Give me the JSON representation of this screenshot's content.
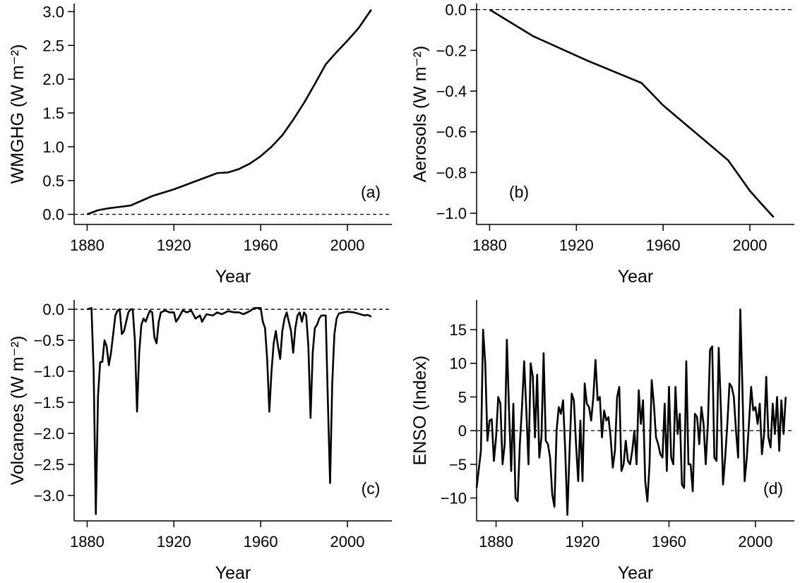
{
  "chart_data": [
    {
      "type": "line",
      "ylabel": "WMGHG (W m⁻²)",
      "xlabel": "Year",
      "annotation": "(a)",
      "annotation_position": "bottom-right",
      "color": "#000000",
      "hline": 0,
      "xlim": [
        1874,
        2020.5
      ],
      "ylim": [
        -0.15,
        3.12
      ],
      "xticks": [
        1880,
        1920,
        1960,
        2000
      ],
      "yticks": [
        {
          "value": 0,
          "label": "0.0"
        },
        0.5,
        {
          "value": 1,
          "label": "1.0"
        },
        1.5,
        {
          "value": 2,
          "label": "2.0"
        },
        2.5,
        {
          "value": 3,
          "label": "3.0"
        }
      ],
      "x": [
        1880,
        1885,
        1890,
        1895,
        1900,
        1905,
        1910,
        1915,
        1920,
        1925,
        1930,
        1935,
        1940,
        1945,
        1950,
        1955,
        1960,
        1965,
        1970,
        1975,
        1980,
        1985,
        1990,
        1995,
        2000,
        2005,
        2011
      ],
      "values": [
        0.0,
        0.06,
        0.09,
        0.11,
        0.13,
        0.2,
        0.27,
        0.32,
        0.37,
        0.43,
        0.49,
        0.55,
        0.61,
        0.62,
        0.67,
        0.75,
        0.86,
        1.0,
        1.17,
        1.4,
        1.65,
        1.93,
        2.22,
        2.4,
        2.57,
        2.75,
        3.03
      ]
    },
    {
      "type": "line",
      "ylabel": "Aerosols (W m⁻²)",
      "xlabel": "Year",
      "annotation": "(b)",
      "annotation_position": "bottom-left",
      "color": "#000000",
      "hline": 0,
      "xlim": [
        1874,
        2020.5
      ],
      "ylim": [
        -1.055,
        0.03
      ],
      "xticks": [
        1880,
        1920,
        1960,
        2000
      ],
      "yticks": [
        {
          "value": 0,
          "label": "0.0"
        },
        {
          "value": -0.2,
          "label": "−0.2"
        },
        {
          "value": -0.4,
          "label": "−0.4"
        },
        {
          "value": -0.6,
          "label": "−0.6"
        },
        {
          "value": -0.8,
          "label": "−0.8"
        },
        {
          "value": -1,
          "label": "−1.0"
        }
      ],
      "x": [
        1880,
        1900,
        1925,
        1950,
        1960,
        1970,
        1980,
        1990,
        2000,
        2005,
        2011
      ],
      "values": [
        0,
        -0.13,
        -0.25,
        -0.36,
        -0.47,
        -0.56,
        -0.65,
        -0.74,
        -0.89,
        -0.95,
        -1.02
      ]
    },
    {
      "type": "line",
      "ylabel": "Volcanoes (W m⁻²)",
      "xlabel": "Year",
      "annotation": "(c)",
      "annotation_position": "bottom-right",
      "color": "#000000",
      "hline": 0,
      "xlim": [
        1874,
        2020.5
      ],
      "ylim": [
        -3.41,
        0.15
      ],
      "xticks": [
        1880,
        1920,
        1960,
        2000
      ],
      "yticks": [
        {
          "value": 0,
          "label": "0.0"
        },
        {
          "value": -0.5,
          "label": "−0.5"
        },
        {
          "value": -1,
          "label": "−1.0"
        },
        {
          "value": -1.5,
          "label": "−1.5"
        },
        {
          "value": -2,
          "label": "−2.0"
        },
        {
          "value": -2.5,
          "label": "−2.5"
        },
        {
          "value": -3,
          "label": "−3.0"
        }
      ],
      "x": [
        1880,
        1882,
        1883,
        1884,
        1885,
        1886,
        1887,
        1888,
        1889,
        1890,
        1891,
        1892,
        1893,
        1894,
        1895,
        1896,
        1897,
        1898,
        1899,
        1900,
        1901,
        1902,
        1903,
        1904,
        1905,
        1906,
        1907,
        1908,
        1909,
        1910,
        1911,
        1912,
        1913,
        1914,
        1916,
        1918,
        1920,
        1921,
        1922,
        1924,
        1926,
        1928,
        1930,
        1932,
        1933,
        1935,
        1938,
        1940,
        1942,
        1945,
        1948,
        1950,
        1952,
        1955,
        1957,
        1960,
        1961,
        1962,
        1963,
        1964,
        1965,
        1966,
        1967,
        1968,
        1969,
        1970,
        1971,
        1972,
        1973,
        1974,
        1975,
        1976,
        1977,
        1978,
        1979,
        1980,
        1981,
        1982,
        1983,
        1984,
        1985,
        1986,
        1987,
        1988,
        1989,
        1990,
        1991,
        1992,
        1993,
        1994,
        1995,
        1996,
        1998,
        2000,
        2003,
        2006,
        2008,
        2009,
        2010,
        2011
      ],
      "values": [
        0,
        0.02,
        -1.0,
        -3.3,
        -1.4,
        -0.85,
        -0.85,
        -0.5,
        -0.6,
        -0.9,
        -0.7,
        -0.4,
        -0.1,
        -0.02,
        0,
        -0.4,
        -0.35,
        -0.2,
        -0.05,
        0,
        0,
        -0.5,
        -1.65,
        -0.7,
        -0.25,
        -0.15,
        -0.2,
        -0.1,
        -0.02,
        -0.05,
        -0.45,
        -0.55,
        -0.2,
        -0.05,
        -0.02,
        -0.05,
        -0.05,
        -0.2,
        -0.15,
        -0.02,
        -0.05,
        -0.02,
        -0.15,
        -0.1,
        -0.2,
        -0.08,
        -0.1,
        -0.05,
        -0.08,
        -0.03,
        -0.05,
        -0.05,
        -0.08,
        -0.03,
        0.02,
        0.02,
        -0.2,
        -0.3,
        -0.8,
        -1.65,
        -1.0,
        -0.55,
        -0.35,
        -0.6,
        -0.8,
        -0.35,
        -0.15,
        -0.05,
        -0.2,
        -0.35,
        -0.7,
        -0.3,
        -0.1,
        -0.05,
        -0.2,
        -0.05,
        -0.1,
        -0.6,
        -1.75,
        -0.7,
        -0.3,
        -0.25,
        -0.15,
        -0.1,
        -0.1,
        -0.1,
        -1.5,
        -2.8,
        -1.2,
        -0.4,
        -0.15,
        -0.07,
        -0.05,
        -0.04,
        -0.05,
        -0.08,
        -0.1,
        -0.09,
        -0.1,
        -0.12
      ]
    },
    {
      "type": "line",
      "ylabel": "ENSO (Index)",
      "xlabel": "Year",
      "annotation": "(d)",
      "annotation_position": "bottom-right",
      "color": "#000000",
      "hline": 0,
      "xlim": [
        1871,
        2018
      ],
      "ylim": [
        -13.4,
        19.4
      ],
      "xticks": [
        1880,
        1920,
        1960,
        2000
      ],
      "yticks": [
        {
          "value": -10,
          "label": "−10"
        },
        {
          "value": -5,
          "label": "−5"
        },
        0,
        5,
        10,
        15
      ],
      "x": [
        1871,
        1873,
        1874,
        1875,
        1876,
        1877,
        1878,
        1879,
        1880,
        1881,
        1882,
        1883,
        1884,
        1885,
        1886,
        1887,
        1888,
        1889,
        1890,
        1891,
        1892,
        1893,
        1894,
        1895,
        1896,
        1897,
        1898,
        1899,
        1900,
        1901,
        1902,
        1903,
        1904,
        1905,
        1906,
        1907,
        1908,
        1909,
        1910,
        1911,
        1912,
        1913,
        1914,
        1915,
        1916,
        1917,
        1918,
        1919,
        1920,
        1921,
        1922,
        1923,
        1924,
        1925,
        1926,
        1927,
        1928,
        1929,
        1930,
        1931,
        1932,
        1933,
        1934,
        1935,
        1936,
        1937,
        1938,
        1939,
        1940,
        1941,
        1942,
        1943,
        1944,
        1945,
        1946,
        1947,
        1948,
        1949,
        1950,
        1951,
        1952,
        1953,
        1954,
        1955,
        1956,
        1957,
        1958,
        1959,
        1960,
        1961,
        1962,
        1963,
        1964,
        1965,
        1966,
        1967,
        1968,
        1969,
        1970,
        1971,
        1972,
        1973,
        1974,
        1975,
        1976,
        1977,
        1978,
        1979,
        1980,
        1981,
        1982,
        1983,
        1984,
        1985,
        1986,
        1987,
        1988,
        1989,
        1990,
        1991,
        1992,
        1993,
        1994,
        1995,
        1996,
        1997,
        1998,
        1999,
        2000,
        2001,
        2002,
        2003,
        2004,
        2005,
        2006,
        2007,
        2008,
        2009,
        2010,
        2011,
        2012,
        2013,
        2014
      ],
      "values": [
        -8.5,
        -3,
        15,
        10,
        -1.5,
        1.5,
        1.7,
        -4.5,
        -1,
        5,
        4,
        -5,
        -2,
        13.5,
        3,
        -6,
        4,
        -10,
        -10.5,
        -2,
        3.5,
        10.3,
        3,
        -5,
        10,
        8,
        -1,
        8.3,
        -4,
        -1,
        11.5,
        -1.5,
        -2,
        -4,
        -9.5,
        -11.3,
        0,
        3.5,
        2.5,
        4.5,
        -3,
        -12.5,
        -3,
        5.5,
        4.5,
        -2,
        -7.5,
        1.5,
        -7.5,
        7,
        4,
        3.5,
        1.5,
        5,
        10.5,
        4.5,
        5,
        -1,
        3,
        1.5,
        2,
        -1,
        -5.5,
        -3,
        5,
        6.5,
        -6,
        -5,
        -1.5,
        -4.5,
        -5,
        -3,
        0,
        -5,
        6,
        1,
        4.5,
        -7.5,
        -10.5,
        -5,
        7.5,
        4,
        -1,
        -2,
        -3.5,
        -4,
        4,
        -6,
        6.5,
        -4,
        -5,
        6.5,
        -0.5,
        2.5,
        -8,
        -8.5,
        10.3,
        -5,
        -5,
        -9,
        2.5,
        2,
        -2,
        3.5,
        1,
        -5,
        1,
        12,
        12.5,
        -4,
        -4.5,
        12.3,
        3.5,
        -8,
        -4,
        1,
        7,
        6.5,
        5,
        0,
        -4,
        18,
        6,
        -7.5,
        -4,
        1,
        6.5,
        3,
        3.5,
        1,
        4,
        -3.5,
        -0.5,
        8,
        -1,
        -2.5,
        4,
        -0.5,
        5,
        -3,
        4.5,
        -0.5,
        5
      ]
    }
  ]
}
